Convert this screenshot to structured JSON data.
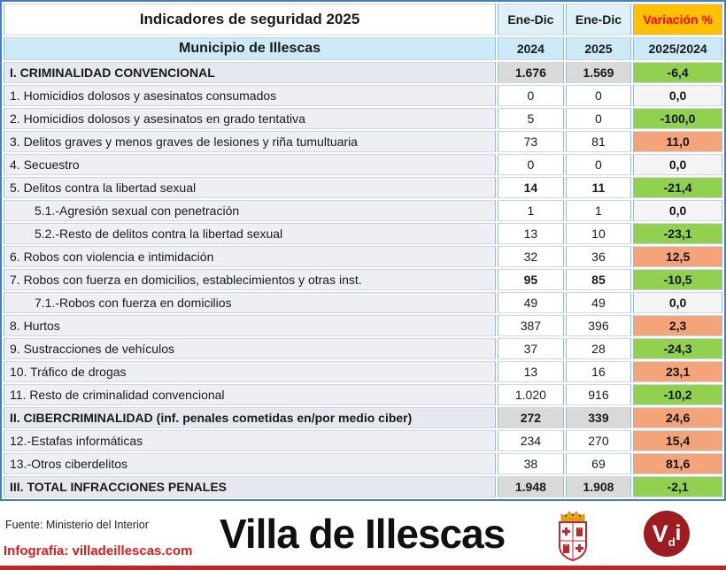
{
  "title": "Indicadores de seguridad 2025",
  "header": {
    "period_2024": "Ene-Dic",
    "period_2025": "Ene-Dic",
    "variation": "Variación %",
    "municipality": "Municipio de Illescas",
    "year_2024": "2024",
    "year_2025": "2025",
    "ratio": "2025/2024"
  },
  "rows": [
    {
      "label": "I. CRIMINALIDAD CONVENCIONAL",
      "v2024": "1.676",
      "v2025": "1.569",
      "variation": "-6,4",
      "type": "section",
      "emphasis": true
    },
    {
      "label": "1. Homicidios dolosos y asesinatos consumados",
      "v2024": "0",
      "v2025": "0",
      "variation": "0,0",
      "type": "item",
      "emphasis": false
    },
    {
      "label": "2. Homicidios dolosos y asesinatos en grado tentativa",
      "v2024": "5",
      "v2025": "0",
      "variation": "-100,0",
      "type": "item",
      "emphasis": false
    },
    {
      "label": "3. Delitos graves y menos graves de lesiones y riña tumultuaria",
      "v2024": "73",
      "v2025": "81",
      "variation": "11,0",
      "type": "item",
      "emphasis": false
    },
    {
      "label": "4. Secuestro",
      "v2024": "0",
      "v2025": "0",
      "variation": "0,0",
      "type": "item",
      "emphasis": false
    },
    {
      "label": "5. Delitos contra la libertad sexual",
      "v2024": "14",
      "v2025": "11",
      "variation": "-21,4",
      "type": "item",
      "emphasis": true
    },
    {
      "label": "5.1.-Agresión sexual con penetración",
      "v2024": "1",
      "v2025": "1",
      "variation": "0,0",
      "type": "sub",
      "emphasis": false
    },
    {
      "label": "5.2.-Resto de delitos contra la libertad sexual",
      "v2024": "13",
      "v2025": "10",
      "variation": "-23,1",
      "type": "sub",
      "emphasis": false
    },
    {
      "label": "6. Robos con violencia e intimidación",
      "v2024": "32",
      "v2025": "36",
      "variation": "12,5",
      "type": "item",
      "emphasis": false
    },
    {
      "label": "7. Robos con fuerza en domicilios, establecimientos y otras inst.",
      "v2024": "95",
      "v2025": "85",
      "variation": "-10,5",
      "type": "item",
      "emphasis": true
    },
    {
      "label": "7.1.-Robos con fuerza en domicilios",
      "v2024": "49",
      "v2025": "49",
      "variation": "0,0",
      "type": "sub",
      "emphasis": false
    },
    {
      "label": "8. Hurtos",
      "v2024": "387",
      "v2025": "396",
      "variation": "2,3",
      "type": "item",
      "emphasis": false
    },
    {
      "label": "9. Sustracciones de vehículos",
      "v2024": "37",
      "v2025": "28",
      "variation": "-24,3",
      "type": "item",
      "emphasis": false
    },
    {
      "label": "10. Tráfico de drogas",
      "v2024": "13",
      "v2025": "16",
      "variation": "23,1",
      "type": "item",
      "emphasis": false
    },
    {
      "label": "11. Resto de criminalidad convencional",
      "v2024": "1.020",
      "v2025": "916",
      "variation": "-10,2",
      "type": "item",
      "emphasis": false
    },
    {
      "label": "II. CIBERCRIMINALIDAD (inf. penales cometidas en/por medio ciber)",
      "v2024": "272",
      "v2025": "339",
      "variation": "24,6",
      "type": "section",
      "emphasis": true
    },
    {
      "label": "12.-Estafas informáticas",
      "v2024": "234",
      "v2025": "270",
      "variation": "15,4",
      "type": "item",
      "emphasis": false
    },
    {
      "label": "13.-Otros ciberdelitos",
      "v2024": "38",
      "v2025": "69",
      "variation": "81,6",
      "type": "item",
      "emphasis": false
    },
    {
      "label": "III. TOTAL INFRACCIONES PENALES",
      "v2024": "1.948",
      "v2025": "1.908",
      "variation": "-2,1",
      "type": "section",
      "emphasis": true
    }
  ],
  "footer": {
    "source": "Fuente: Ministerio del Interior",
    "credit": "Infografía: villadeillescas.com",
    "brand": "Villa de Illescas",
    "logo": {
      "v": "V",
      "d": "d",
      "i": "i"
    }
  },
  "colors": {
    "positive_bg": "#f4a478",
    "negative_bg": "#92d050",
    "neutral_bg": "#f4f4f5",
    "header_amber": "#ffc000",
    "header_amber_text": "#ff0000",
    "header_blue": "#cbe9f6",
    "header_lightblue": "#def0f8",
    "section_value_bg": "#d9d9d9",
    "table_border": "#4a7ebb",
    "brand_circle": "#9e1b1f",
    "bottom_strip": "#bf2626",
    "credit_red": "#e01a1a"
  },
  "chart_data": {
    "type": "table",
    "title": "Indicadores de seguridad 2025 — Municipio de Illescas",
    "columns": [
      "Indicador",
      "Ene-Dic 2024",
      "Ene-Dic 2025",
      "Variación % 2025/2024"
    ],
    "rows": [
      [
        "I. CRIMINALIDAD CONVENCIONAL",
        1676,
        1569,
        -6.4
      ],
      [
        "1. Homicidios dolosos y asesinatos consumados",
        0,
        0,
        0.0
      ],
      [
        "2. Homicidios dolosos y asesinatos en grado tentativa",
        5,
        0,
        -100.0
      ],
      [
        "3. Delitos graves y menos graves de lesiones y riña tumultuaria",
        73,
        81,
        11.0
      ],
      [
        "4. Secuestro",
        0,
        0,
        0.0
      ],
      [
        "5. Delitos contra la libertad sexual",
        14,
        11,
        -21.4
      ],
      [
        "5.1.-Agresión sexual con penetración",
        1,
        1,
        0.0
      ],
      [
        "5.2.-Resto de delitos contra la libertad sexual",
        13,
        10,
        -23.1
      ],
      [
        "6. Robos con violencia e intimidación",
        32,
        36,
        12.5
      ],
      [
        "7. Robos con fuerza en domicilios, establecimientos y otras inst.",
        95,
        85,
        -10.5
      ],
      [
        "7.1.-Robos con fuerza en domicilios",
        49,
        49,
        0.0
      ],
      [
        "8. Hurtos",
        387,
        396,
        2.3
      ],
      [
        "9. Sustracciones de vehículos",
        37,
        28,
        -24.3
      ],
      [
        "10. Tráfico de drogas",
        13,
        16,
        23.1
      ],
      [
        "11. Resto de criminalidad convencional",
        1020,
        916,
        -10.2
      ],
      [
        "II. CIBERCRIMINALIDAD (inf. penales cometidas en/por medio ciber)",
        272,
        339,
        24.6
      ],
      [
        "12.-Estafas informáticas",
        234,
        270,
        15.4
      ],
      [
        "13.-Otros ciberdelitos",
        38,
        69,
        81.6
      ],
      [
        "III. TOTAL INFRACCIONES PENALES",
        1948,
        1908,
        -2.1
      ]
    ]
  }
}
